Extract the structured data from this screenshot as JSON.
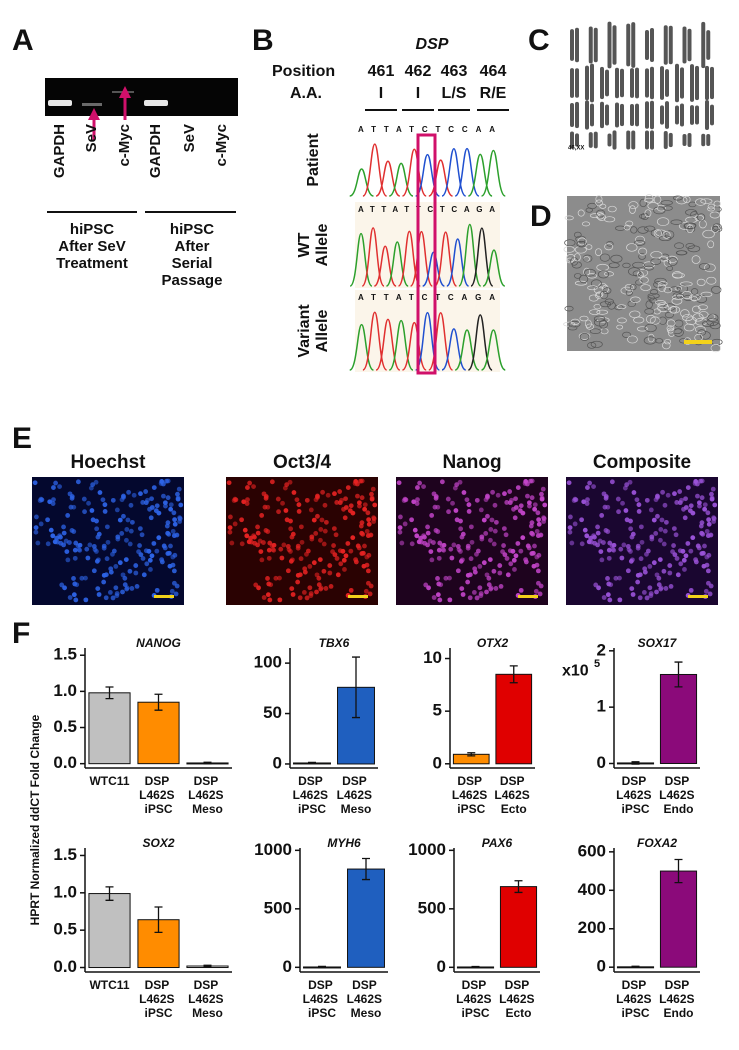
{
  "panel_labels": [
    "A",
    "B",
    "C",
    "D",
    "E",
    "F"
  ],
  "gel": {
    "lanes": [
      "GAPDH",
      "SeV",
      "c-Myc",
      "GAPDH",
      "SeV",
      "c-Myc"
    ],
    "groups": [
      [
        "hiPSC",
        "After SeV",
        "Treatment"
      ],
      [
        "hiPSC",
        "After",
        "Serial",
        "Passage"
      ]
    ]
  },
  "sequencing": {
    "gene": "DSP",
    "position_label": "Position",
    "aa_label": "A.A.",
    "positions": [
      "461",
      "462",
      "463",
      "464"
    ],
    "amino_acids": [
      "I",
      "I",
      "L/S",
      "R/E"
    ],
    "tracks": [
      {
        "label": [
          "Patient"
        ],
        "sequence": "ATTATCTCCAA"
      },
      {
        "label": [
          "WT",
          "Allele"
        ],
        "sequence": "ATTATTCTCAGA"
      },
      {
        "label": [
          "Variant",
          "Allele"
        ],
        "sequence": "ATTATCTCAGA"
      }
    ]
  },
  "karyotype": {
    "note": "46,XX"
  },
  "immunostaining": {
    "channels": [
      "Hoechst",
      "Oct3/4",
      "Nanog",
      "Composite"
    ]
  },
  "qpcr_y_label": "HPRT Normalized ddCT Fold Change",
  "chart_data": [
    {
      "type": "bar",
      "title": "NANOG",
      "categories": [
        "WTC11",
        "DSP L462S iPSC",
        "DSP L462S Meso"
      ],
      "values": [
        0.98,
        0.85,
        0.01
      ],
      "errors": [
        0.08,
        0.11,
        0.01
      ],
      "colors": [
        "#c0c0c0",
        "#ff8c00",
        "#ffffff"
      ],
      "ylim": [
        -0.06,
        1.6
      ],
      "yticks": [
        {
          "value": 0,
          "label": "0.0"
        },
        0.5,
        {
          "value": 1,
          "label": "1.0"
        },
        1.5
      ]
    },
    {
      "type": "bar",
      "title": "TBX6",
      "categories": [
        "DSP L462S iPSC",
        "DSP L462S Meso"
      ],
      "values": [
        1,
        76
      ],
      "errors": [
        0.5,
        30
      ],
      "colors": [
        "#ff8c00",
        "#1f5fbf"
      ],
      "ylim": [
        -4,
        115
      ],
      "yticks": [
        0,
        50,
        100
      ]
    },
    {
      "type": "bar",
      "title": "OTX2",
      "categories": [
        "DSP L462S iPSC",
        "DSP L462S Ecto"
      ],
      "values": [
        0.9,
        8.5
      ],
      "errors": [
        0.15,
        0.8
      ],
      "colors": [
        "#ff8c00",
        "#e00000"
      ],
      "ylim": [
        -0.4,
        11
      ],
      "yticks": [
        0,
        5,
        10
      ]
    },
    {
      "type": "bar",
      "title": "SOX17",
      "annotation": "x10",
      "annotation_sup": "5",
      "categories": [
        "DSP L462S iPSC",
        "DSP L462S Endo"
      ],
      "values": [
        0.01,
        1.58
      ],
      "errors": [
        0.02,
        0.22
      ],
      "colors": [
        "#ff8c00",
        "#8b0a7a"
      ],
      "ylim": [
        -0.08,
        2.05
      ],
      "yticks": [
        0,
        1,
        2
      ]
    },
    {
      "type": "bar",
      "title": "SOX2",
      "categories": [
        "WTC11",
        "DSP L462S iPSC",
        "DSP L462S Meso"
      ],
      "values": [
        0.99,
        0.64,
        0.02
      ],
      "errors": [
        0.09,
        0.17,
        0.01
      ],
      "colors": [
        "#c0c0c0",
        "#ff8c00",
        "#ffffff"
      ],
      "ylim": [
        -0.06,
        1.6
      ],
      "yticks": [
        {
          "value": 0,
          "label": "0.0"
        },
        0.5,
        {
          "value": 1,
          "label": "1.0"
        },
        1.5
      ]
    },
    {
      "type": "bar",
      "title": "MYH6",
      "categories": [
        "DSP L462S iPSC",
        "DSP L462S Meso"
      ],
      "values": [
        3,
        840
      ],
      "errors": [
        5,
        90
      ],
      "colors": [
        "#ff8c00",
        "#1f5fbf"
      ],
      "ylim": [
        -40,
        1020
      ],
      "yticks": [
        0,
        500,
        1000
      ]
    },
    {
      "type": "bar",
      "title": "PAX6",
      "categories": [
        "DSP L462S iPSC",
        "DSP L462S Ecto"
      ],
      "values": [
        3,
        690
      ],
      "errors": [
        4,
        50
      ],
      "colors": [
        "#ff8c00",
        "#e00000"
      ],
      "ylim": [
        -40,
        1020
      ],
      "yticks": [
        0,
        500,
        1000
      ]
    },
    {
      "type": "bar",
      "title": "FOXA2",
      "categories": [
        "DSP L462S iPSC",
        "DSP L462S Endo"
      ],
      "values": [
        2,
        500
      ],
      "errors": [
        3,
        60
      ],
      "colors": [
        "#ff8c00",
        "#8b0a7a"
      ],
      "ylim": [
        -25,
        620
      ],
      "yticks": [
        0,
        200,
        400,
        600
      ]
    }
  ]
}
